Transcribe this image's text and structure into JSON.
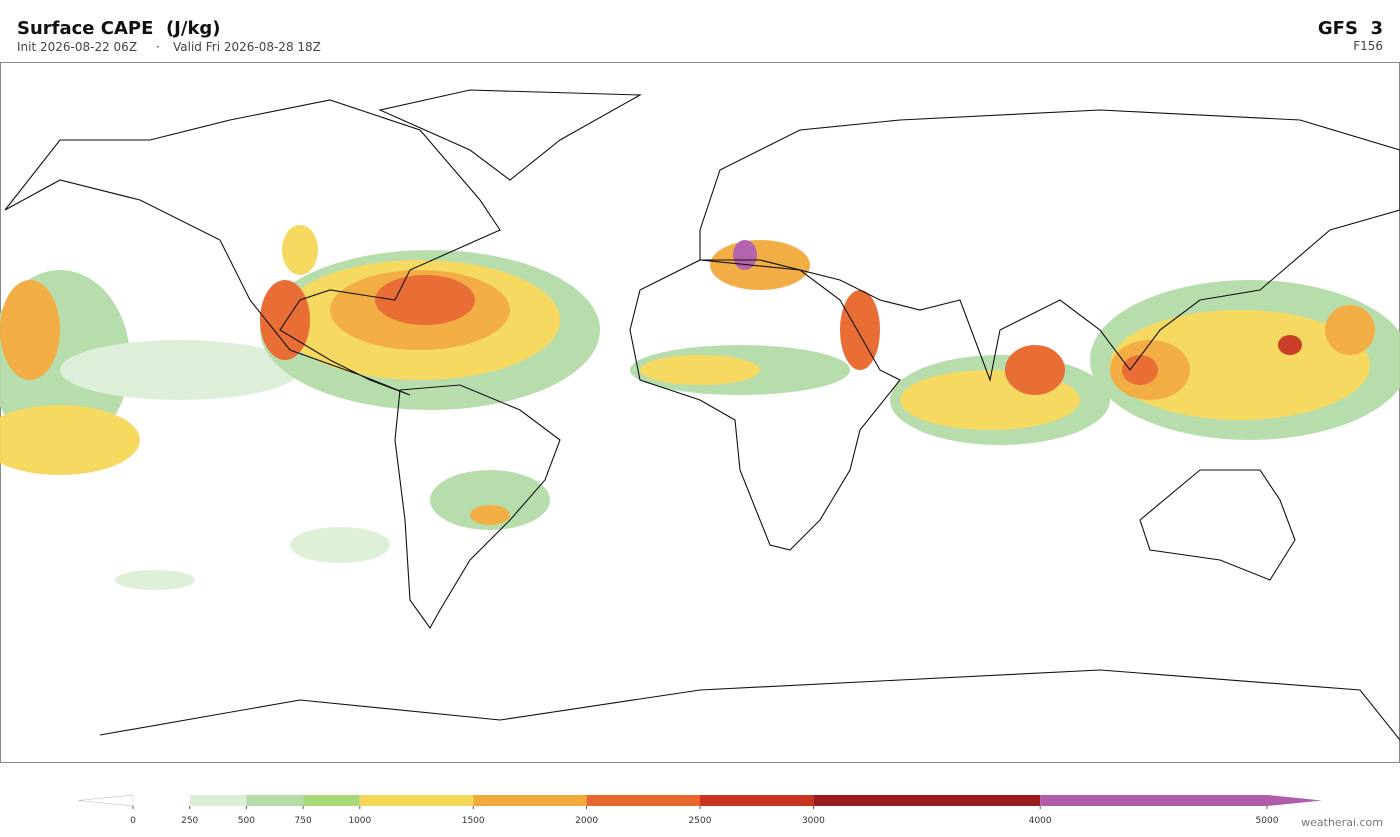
{
  "header": {
    "title": "Surface CAPE  (J/kg)",
    "init": "Init 2026-08-22 06Z",
    "separator": "·",
    "valid": "Valid Fri 2026-08-28 18Z",
    "model": "GFS  3",
    "forecast_hour": "F156"
  },
  "colorbar": {
    "xlim": [
      0,
      5000
    ],
    "ticks": [
      0,
      250,
      500,
      750,
      1000,
      1500,
      2000,
      2500,
      3000,
      4000,
      5000
    ],
    "colors": [
      "#ffffff",
      "#dcefd6",
      "#b5dca8",
      "#a8d877",
      "#f5d858",
      "#f2a93b",
      "#e8672c",
      "#c8341f",
      "#9b1c1c",
      "#b05ca8"
    ]
  },
  "footer": {
    "credit": "weatherai.com"
  }
}
